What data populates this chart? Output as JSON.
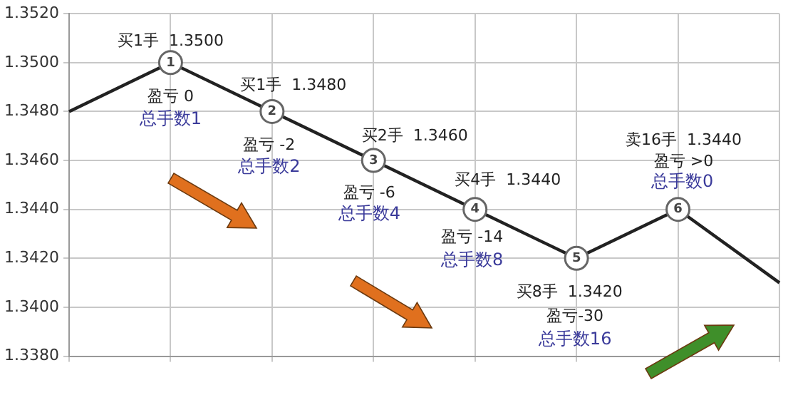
{
  "chart_data": {
    "type": "line",
    "categories": [
      null,
      null,
      null,
      null,
      null,
      null,
      null,
      null
    ],
    "values": [
      1.348,
      1.35,
      1.348,
      1.346,
      1.344,
      1.342,
      1.344,
      1.341
    ],
    "color": "#222222",
    "marker": "circle",
    "line_style": "solid",
    "ylim": [
      1.338,
      1.352
    ],
    "yticks": [
      {
        "value": 1.338,
        "label": "1.3380"
      },
      {
        "value": 1.34,
        "label": "1.3400"
      },
      {
        "value": 1.342,
        "label": "1.3420"
      },
      {
        "value": 1.344,
        "label": "1.3440"
      },
      {
        "value": 1.346,
        "label": "1.3460"
      },
      {
        "value": 1.348,
        "label": "1.3480"
      },
      {
        "value": 1.35,
        "label": "1.3500"
      },
      {
        "value": 1.352,
        "label": "1.3520"
      }
    ],
    "grid": true,
    "legend": false,
    "annotations": [
      "1",
      "买1手  1.3500",
      "盈亏 0",
      "总手数1",
      "2",
      "买1手  1.3480",
      "盈亏 -2",
      "总手数2",
      "3",
      "买2手  1.3460",
      "盈亏 -6",
      "总手数4",
      "4",
      "买4手  1.3440",
      "盈亏 -14",
      "总手数8",
      "5",
      "买8手  1.3420",
      "盈亏-30",
      "总手数16",
      "6",
      "卖16手  1.3440",
      "盈亏 >0",
      "总手数0"
    ]
  }
}
